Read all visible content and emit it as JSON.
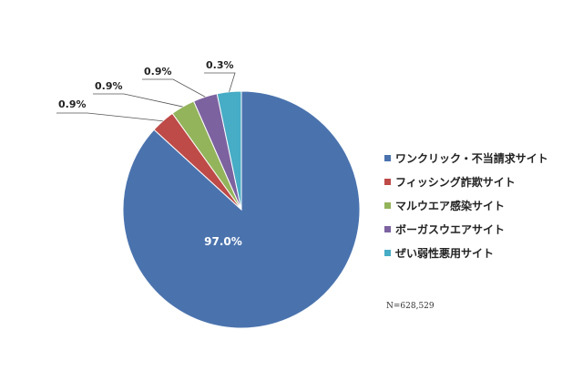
{
  "chart_data": {
    "type": "pie",
    "categories": [
      "ワンクリック・不当請求サイト",
      "フィッシング詐欺サイト",
      "マルウエア感染サイト",
      "ボーガスウエアサイト",
      "ぜい弱性悪用サイト"
    ],
    "values": [
      97.0,
      0.9,
      0.9,
      0.9,
      0.3
    ],
    "labels": [
      "97.0%",
      "0.9%",
      "0.9%",
      "0.9%",
      "0.3%"
    ],
    "colors": [
      "#4A73AE",
      "#BE4B48",
      "#93B45B",
      "#7D62A0",
      "#47ACC5"
    ],
    "legend_position": "right",
    "note": "N=628,529"
  }
}
